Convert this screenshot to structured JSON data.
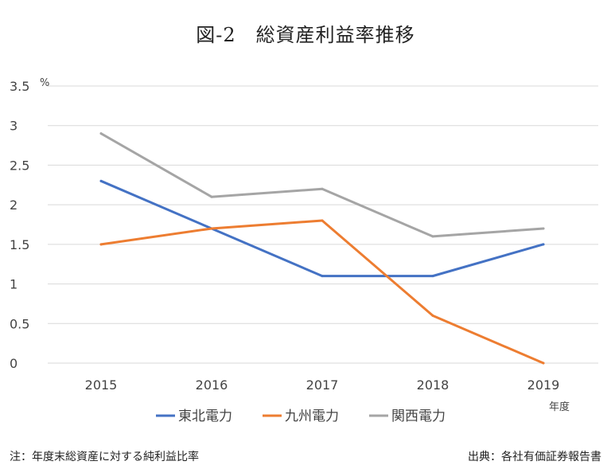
{
  "title": "図-2　総資産利益率推移",
  "footnote": "注：年度末総資産に対する純利益比率",
  "source": "出典：各社有価証券報告書",
  "chart_data": {
    "type": "line",
    "x": [
      "2015",
      "2016",
      "2017",
      "2018",
      "2019"
    ],
    "y_ticks": [
      "0",
      "0.5",
      "1",
      "1.5",
      "2",
      "2.5",
      "3",
      "3.5"
    ],
    "ylim": [
      0,
      3.5
    ],
    "y_unit": "%",
    "x_unit": "年度",
    "grid": true,
    "legend_position": "bottom",
    "series": [
      {
        "name": "東北電力",
        "color": "#4472C4",
        "values": [
          2.3,
          1.7,
          1.1,
          1.1,
          1.5
        ]
      },
      {
        "name": "九州電力",
        "color": "#ED7D31",
        "values": [
          1.5,
          1.7,
          1.8,
          0.6,
          0.0
        ]
      },
      {
        "name": "関西電力",
        "color": "#A5A5A5",
        "values": [
          2.9,
          2.1,
          2.2,
          1.6,
          1.7
        ]
      }
    ]
  }
}
